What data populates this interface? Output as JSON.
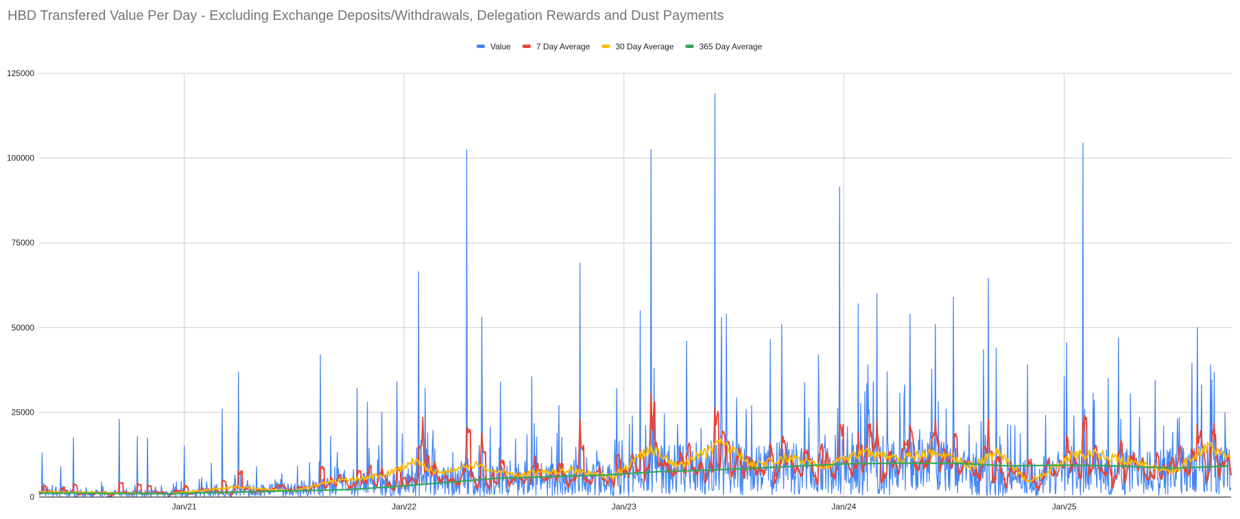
{
  "chart_data": {
    "type": "line",
    "title": "HBD Transfered Value Per Day - Excluding Exchange Deposits/Withdrawals, Delegation Rewards and Dust Payments",
    "xlabel": "",
    "ylabel": "",
    "x_axis": {
      "type": "date",
      "range": [
        "2020-05-05",
        "2025-10-05"
      ],
      "tick_labels": [
        "Jan/21",
        "Jan/22",
        "Jan/23",
        "Jan/24",
        "Jan/25"
      ],
      "tick_dates": [
        "2021-01-01",
        "2022-01-01",
        "2023-01-01",
        "2024-01-01",
        "2025-01-01"
      ]
    },
    "y_axis": {
      "range": [
        0,
        125000
      ],
      "ticks": [
        0,
        25000,
        50000,
        75000,
        100000,
        125000
      ],
      "tick_labels": [
        "0",
        "25000",
        "50000",
        "75000",
        "100000",
        "125000"
      ]
    },
    "grid": true,
    "legend_position": "top",
    "colors": {
      "value": "#4285f4",
      "avg7": "#ea4335",
      "avg30": "#fbbc04",
      "avg365": "#34a853",
      "grid": "#cccccc",
      "axis": "#333333"
    },
    "series": [
      {
        "name": "Value",
        "color": "#4285f4",
        "base_trend": [
          [
            "2020-05-05",
            1500
          ],
          [
            "2020-12-01",
            1200
          ],
          [
            "2021-06-01",
            2500
          ],
          [
            "2021-10-01",
            4000
          ],
          [
            "2022-01-01",
            5500
          ],
          [
            "2022-06-01",
            6000
          ],
          [
            "2022-12-01",
            6500
          ],
          [
            "2023-03-01",
            9500
          ],
          [
            "2023-06-01",
            10500
          ],
          [
            "2024-01-01",
            10000
          ],
          [
            "2024-06-01",
            11000
          ],
          [
            "2024-10-01",
            6000
          ],
          [
            "2025-01-01",
            9000
          ],
          [
            "2025-06-01",
            8500
          ],
          [
            "2025-10-05",
            11000
          ]
        ],
        "peaks": [
          [
            "2020-05-10",
            13000
          ],
          [
            "2020-06-10",
            9000
          ],
          [
            "2020-07-01",
            17500
          ],
          [
            "2020-09-15",
            23000
          ],
          [
            "2020-10-15",
            18000
          ],
          [
            "2020-11-01",
            17500
          ],
          [
            "2021-01-01",
            15000
          ],
          [
            "2021-02-15",
            10000
          ],
          [
            "2021-03-05",
            26000
          ],
          [
            "2021-04-01",
            37000
          ],
          [
            "2021-05-01",
            9000
          ],
          [
            "2021-08-15",
            42000
          ],
          [
            "2021-09-01",
            18000
          ],
          [
            "2021-10-15",
            32000
          ],
          [
            "2021-11-01",
            28000
          ],
          [
            "2021-11-25",
            25000
          ],
          [
            "2021-12-20",
            34000
          ],
          [
            "2022-01-25",
            66500
          ],
          [
            "2022-02-05",
            32000
          ],
          [
            "2022-04-15",
            102500
          ],
          [
            "2022-05-10",
            53000
          ],
          [
            "2022-06-10",
            34000
          ],
          [
            "2022-08-01",
            35500
          ],
          [
            "2022-09-15",
            27000
          ],
          [
            "2022-10-20",
            69000
          ],
          [
            "2022-12-20",
            32000
          ],
          [
            "2023-01-28",
            55000
          ],
          [
            "2023-02-15",
            102500
          ],
          [
            "2023-02-20",
            38000
          ],
          [
            "2023-04-15",
            46000
          ],
          [
            "2023-06-01",
            119000
          ],
          [
            "2023-06-12",
            53000
          ],
          [
            "2023-06-20",
            54000
          ],
          [
            "2023-08-01",
            27000
          ],
          [
            "2023-09-01",
            46500
          ],
          [
            "2023-09-20",
            51000
          ],
          [
            "2023-11-20",
            42000
          ],
          [
            "2023-12-25",
            91500
          ],
          [
            "2024-01-25",
            57000
          ],
          [
            "2024-02-10",
            39000
          ],
          [
            "2024-02-25",
            60000
          ],
          [
            "2024-04-20",
            54000
          ],
          [
            "2024-06-01",
            51000
          ],
          [
            "2024-07-01",
            59000
          ],
          [
            "2024-08-20",
            43500
          ],
          [
            "2024-08-28",
            64500
          ],
          [
            "2024-09-10",
            44000
          ],
          [
            "2024-11-01",
            39000
          ],
          [
            "2025-01-01",
            35500
          ],
          [
            "2025-01-05",
            45500
          ],
          [
            "2025-02-01",
            104500
          ],
          [
            "2025-03-15",
            35000
          ],
          [
            "2025-04-01",
            47000
          ],
          [
            "2025-06-01",
            34500
          ],
          [
            "2025-08-01",
            39500
          ],
          [
            "2025-08-10",
            50000
          ],
          [
            "2025-09-01",
            39000
          ],
          [
            "2025-09-25",
            25000
          ]
        ]
      },
      {
        "name": "7 Day Average",
        "color": "#ea4335",
        "peaks": [
          [
            "2022-02-01",
            23500
          ],
          [
            "2022-04-15",
            19000
          ],
          [
            "2022-05-10",
            19000
          ],
          [
            "2022-10-20",
            23000
          ],
          [
            "2023-02-15",
            30500
          ],
          [
            "2023-06-01",
            26500
          ],
          [
            "2024-01-25",
            19000
          ],
          [
            "2024-08-28",
            23000
          ],
          [
            "2025-02-01",
            22000
          ],
          [
            "2025-08-10",
            21500
          ]
        ]
      },
      {
        "name": "30 Day Average",
        "color": "#fbbc04",
        "points": [
          [
            "2020-05-05",
            1500
          ],
          [
            "2020-08-01",
            1400
          ],
          [
            "2020-12-01",
            900
          ],
          [
            "2021-04-01",
            3000
          ],
          [
            "2021-07-01",
            1800
          ],
          [
            "2021-09-01",
            4500
          ],
          [
            "2021-12-01",
            6500
          ],
          [
            "2022-01-15",
            10500
          ],
          [
            "2022-03-01",
            7000
          ],
          [
            "2022-05-01",
            9500
          ],
          [
            "2022-07-01",
            6500
          ],
          [
            "2022-10-01",
            8000
          ],
          [
            "2022-12-15",
            6000
          ],
          [
            "2023-02-15",
            14500
          ],
          [
            "2023-04-01",
            9000
          ],
          [
            "2023-06-15",
            16000
          ],
          [
            "2023-08-01",
            9500
          ],
          [
            "2023-10-01",
            11500
          ],
          [
            "2023-12-01",
            9000
          ],
          [
            "2024-02-01",
            13000
          ],
          [
            "2024-04-01",
            11000
          ],
          [
            "2024-06-01",
            13500
          ],
          [
            "2024-08-01",
            9000
          ],
          [
            "2024-09-15",
            13500
          ],
          [
            "2024-11-01",
            4500
          ],
          [
            "2024-12-01",
            7000
          ],
          [
            "2025-01-15",
            12500
          ],
          [
            "2025-03-01",
            12500
          ],
          [
            "2025-05-01",
            10000
          ],
          [
            "2025-07-01",
            7500
          ],
          [
            "2025-09-01",
            15000
          ],
          [
            "2025-10-05",
            11000
          ]
        ]
      },
      {
        "name": "365 Day Average",
        "color": "#34a853",
        "points": [
          [
            "2020-05-05",
            1200
          ],
          [
            "2020-12-01",
            1000
          ],
          [
            "2021-05-01",
            1600
          ],
          [
            "2021-10-01",
            2200
          ],
          [
            "2022-01-01",
            3300
          ],
          [
            "2022-06-01",
            5500
          ],
          [
            "2022-12-01",
            6500
          ],
          [
            "2023-03-01",
            7500
          ],
          [
            "2023-06-01",
            8000
          ],
          [
            "2023-10-01",
            9000
          ],
          [
            "2024-01-01",
            9800
          ],
          [
            "2024-04-01",
            10000
          ],
          [
            "2024-07-01",
            10000
          ],
          [
            "2024-10-01",
            9200
          ],
          [
            "2025-01-01",
            9400
          ],
          [
            "2025-04-01",
            9200
          ],
          [
            "2025-07-01",
            8500
          ],
          [
            "2025-10-05",
            9200
          ]
        ]
      }
    ]
  }
}
